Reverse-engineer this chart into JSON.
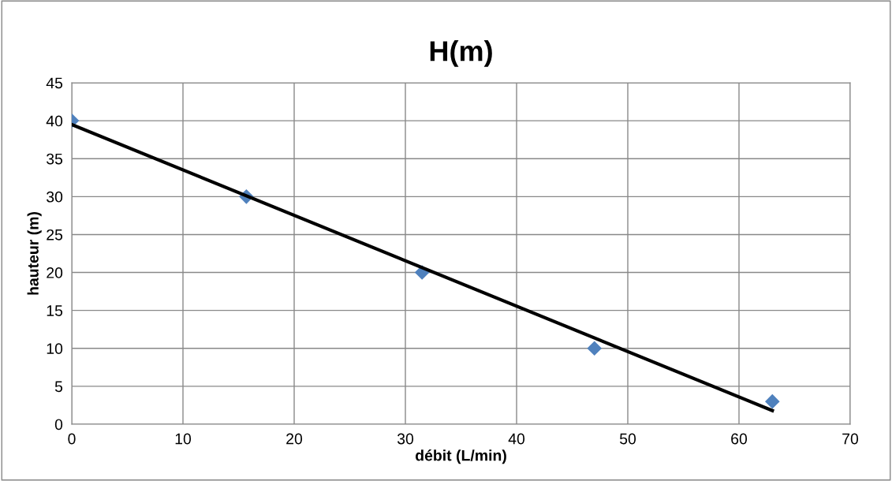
{
  "chart_data": {
    "type": "scatter",
    "title": "H(m)",
    "xlabel": "débit (L/min)",
    "ylabel": "hauteur (m)",
    "xlim": [
      0,
      70
    ],
    "xticks": [
      0,
      10,
      20,
      30,
      40,
      50,
      60,
      70
    ],
    "ylim": [
      0,
      45
    ],
    "yticks": [
      0,
      5,
      10,
      15,
      20,
      25,
      30,
      35,
      40,
      45
    ],
    "grid": true,
    "legend": false,
    "series": [
      {
        "color": "#4f81bd",
        "marker": "diamond",
        "x": [
          0,
          15.7,
          31.5,
          47,
          63
        ],
        "values": [
          40,
          30,
          20,
          10,
          3
        ]
      },
      {
        "type": "line",
        "color": "#000000",
        "marker": "none",
        "line_style": "solid",
        "x": [
          0,
          63
        ],
        "values": [
          39.5,
          1.8
        ]
      }
    ]
  }
}
